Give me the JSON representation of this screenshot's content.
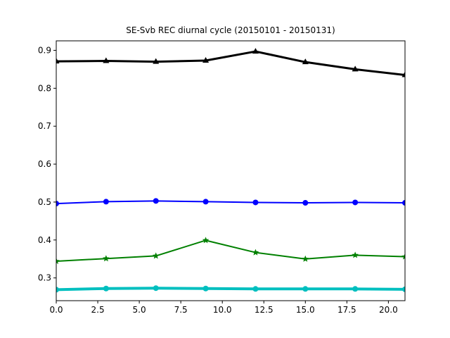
{
  "chart_data": {
    "type": "line",
    "title": "SE-Svb REC diurnal cycle (20150101 - 20150131)",
    "xlabel": "",
    "ylabel": "",
    "xlim": [
      0,
      21
    ],
    "ylim": [
      0.24,
      0.925
    ],
    "xticks": [
      0.0,
      2.5,
      5.0,
      7.5,
      10.0,
      12.5,
      15.0,
      17.5,
      20.0
    ],
    "xtick_labels": [
      "0.0",
      "2.5",
      "5.0",
      "7.5",
      "10.0",
      "12.5",
      "15.0",
      "17.5",
      "20.0"
    ],
    "yticks": [
      0.3,
      0.4,
      0.5,
      0.6,
      0.7,
      0.8,
      0.9
    ],
    "ytick_labels": [
      "0.3",
      "0.4",
      "0.5",
      "0.6",
      "0.7",
      "0.8",
      "0.9"
    ],
    "grid": false,
    "x": [
      0,
      3,
      6,
      9,
      12,
      15,
      18,
      21
    ],
    "series": [
      {
        "color": "#000000",
        "marker": "triangle",
        "linewidth": 3,
        "values": [
          0.871,
          0.872,
          0.87,
          0.873,
          0.897,
          0.869,
          0.85,
          0.835
        ]
      },
      {
        "color": "#0000ff",
        "marker": "circle",
        "linewidth": 2,
        "values": [
          0.496,
          0.501,
          0.503,
          0.501,
          0.499,
          0.498,
          0.499,
          0.498
        ]
      },
      {
        "color": "#008000",
        "marker": "star",
        "linewidth": 2,
        "values": [
          0.344,
          0.351,
          0.358,
          0.399,
          0.367,
          0.35,
          0.36,
          0.356
        ]
      },
      {
        "color": "#00bfbf",
        "marker": "circle",
        "linewidth": 4,
        "values": [
          0.269,
          0.272,
          0.273,
          0.272,
          0.271,
          0.271,
          0.271,
          0.27
        ]
      }
    ]
  }
}
